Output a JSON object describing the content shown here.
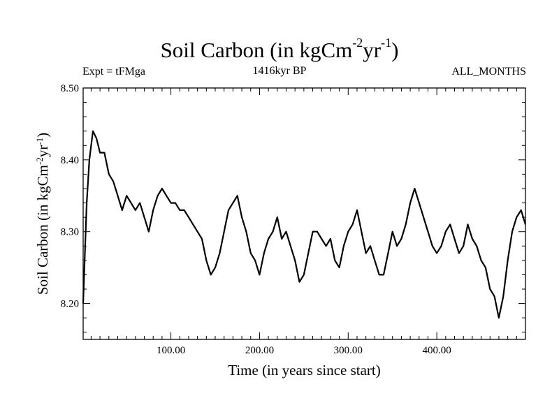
{
  "header": {
    "title_main": "Soil Carbon (in kgCm",
    "title_sup1": "-2",
    "title_mid": "yr",
    "title_sup2": "-1",
    "title_end": ")",
    "expt": "Expt = tFMga",
    "period": "1416kyr BP",
    "months": "ALL_MONTHS"
  },
  "chart_data": {
    "type": "line",
    "title": "Soil Carbon (in kgCm-2yr-1)",
    "xlabel": "Time (in years since start)",
    "ylabel": "Soil Carbon (in kgCm-2yr-1)",
    "xlim": [
      1,
      500
    ],
    "ylim": [
      8.15,
      8.5
    ],
    "x_ticks": [
      100,
      200,
      300,
      400
    ],
    "x_tick_labels": [
      "100.00",
      "200.00",
      "300.00",
      "400.00"
    ],
    "y_ticks": [
      8.2,
      8.3,
      8.4,
      8.5
    ],
    "y_tick_labels": [
      "8.20",
      "8.30",
      "8.40",
      "8.50"
    ],
    "grid": false,
    "color": "#000000",
    "series": [
      {
        "x": [
          1,
          3,
          5,
          8,
          12,
          16,
          20,
          25,
          30,
          35,
          40,
          45,
          50,
          55,
          60,
          65,
          70,
          75,
          80,
          85,
          90,
          95,
          100,
          105,
          110,
          115,
          120,
          125,
          130,
          135,
          140,
          145,
          150,
          155,
          160,
          165,
          170,
          175,
          180,
          185,
          190,
          195,
          200,
          205,
          210,
          215,
          220,
          225,
          230,
          235,
          240,
          245,
          250,
          255,
          260,
          265,
          270,
          275,
          280,
          285,
          290,
          295,
          300,
          305,
          310,
          315,
          320,
          325,
          330,
          335,
          340,
          345,
          350,
          355,
          360,
          365,
          370,
          375,
          380,
          385,
          390,
          395,
          400,
          405,
          410,
          415,
          420,
          425,
          430,
          435,
          440,
          445,
          450,
          455,
          460,
          465,
          470,
          475,
          480,
          485,
          490,
          495,
          500
        ],
        "y": [
          8.2,
          8.27,
          8.34,
          8.4,
          8.44,
          8.43,
          8.41,
          8.41,
          8.38,
          8.37,
          8.35,
          8.33,
          8.35,
          8.34,
          8.33,
          8.34,
          8.32,
          8.3,
          8.33,
          8.35,
          8.36,
          8.35,
          8.34,
          8.34,
          8.33,
          8.33,
          8.32,
          8.31,
          8.3,
          8.29,
          8.26,
          8.24,
          8.25,
          8.27,
          8.3,
          8.33,
          8.34,
          8.35,
          8.32,
          8.3,
          8.27,
          8.26,
          8.24,
          8.27,
          8.29,
          8.3,
          8.32,
          8.29,
          8.3,
          8.28,
          8.26,
          8.23,
          8.24,
          8.27,
          8.3,
          8.3,
          8.29,
          8.28,
          8.29,
          8.26,
          8.25,
          8.28,
          8.3,
          8.31,
          8.33,
          8.3,
          8.27,
          8.28,
          8.26,
          8.24,
          8.24,
          8.27,
          8.3,
          8.28,
          8.29,
          8.31,
          8.34,
          8.36,
          8.34,
          8.32,
          8.3,
          8.28,
          8.27,
          8.28,
          8.3,
          8.31,
          8.29,
          8.27,
          8.28,
          8.31,
          8.29,
          8.28,
          8.26,
          8.25,
          8.22,
          8.21,
          8.18,
          8.21,
          8.26,
          8.3,
          8.32,
          8.33,
          8.31
        ]
      }
    ]
  }
}
